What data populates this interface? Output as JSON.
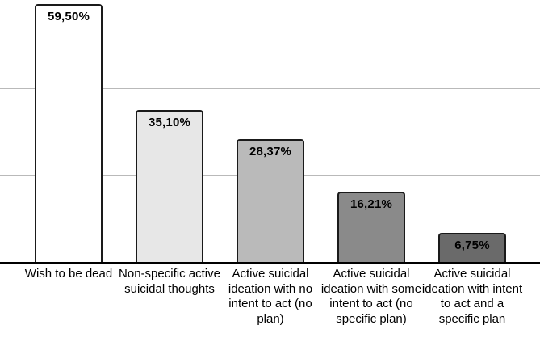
{
  "chart_data": {
    "type": "bar",
    "title": "",
    "xlabel": "",
    "ylabel": "",
    "legend": "none",
    "grid": "horizontal",
    "ylim": [
      0,
      60
    ],
    "gridline_values": [
      20,
      40,
      60
    ],
    "categories": [
      "Wish to be dead",
      "Non-specific active suicidal thoughts",
      "Active suicidal ideation with no intent to act (no plan)",
      "Active suicidal ideation with some intent to act (no specific plan)",
      "Active suicidal ideation with intent to act and a specific plan"
    ],
    "values": [
      59.5,
      35.1,
      28.37,
      16.21,
      6.75
    ],
    "value_labels": [
      "59,50%",
      "35,10%",
      "28,37%",
      "16,21%",
      "6,75%"
    ],
    "colors": {
      "bar_fills": [
        "#ffffff",
        "#e7e7e7",
        "#bababa",
        "#8a8a8a",
        "#6a6a6a"
      ],
      "bar_border": "#1a1a1a",
      "gridline": "#b9b9b9",
      "axis": "#000000",
      "background": "#ffffff",
      "label_text": "#000000"
    }
  }
}
